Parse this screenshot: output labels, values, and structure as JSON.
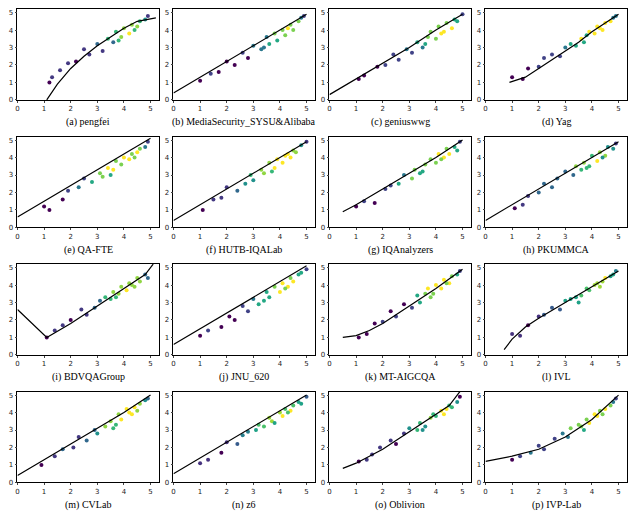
{
  "chart_data": [
    {
      "type": "scatter",
      "title": "(a) pengfei",
      "xlim": [
        0,
        5.3
      ],
      "ylim": [
        0,
        5.2
      ],
      "xticks": [
        0,
        1,
        2,
        3,
        4,
        5
      ],
      "yticks": [
        0,
        1,
        2,
        3,
        4,
        5
      ],
      "x": [
        1.2,
        1.3,
        1.6,
        1.9,
        2.2,
        2.5,
        2.7,
        3.0,
        3.2,
        3.4,
        3.6,
        3.7,
        3.9,
        4.0,
        4.2,
        4.3,
        4.5,
        4.6,
        4.8,
        4.9,
        3.8,
        4.4
      ],
      "y": [
        1.0,
        1.3,
        1.7,
        2.1,
        2.2,
        2.9,
        2.6,
        3.2,
        2.8,
        3.5,
        3.3,
        3.9,
        3.6,
        4.1,
        3.8,
        4.3,
        4.2,
        4.5,
        4.6,
        4.8,
        3.4,
        4.0
      ],
      "fit": {
        "x": [
          1.1,
          1.5,
          2.0,
          2.5,
          3.0,
          3.5,
          4.0,
          4.5,
          5.2
        ],
        "y": [
          0,
          0.9,
          1.8,
          2.5,
          3.1,
          3.6,
          4.1,
          4.5,
          4.7
        ]
      }
    },
    {
      "type": "scatter",
      "title": "(b) MediaSecurity_SYSU&Alibaba",
      "xlim": [
        0,
        5.3
      ],
      "ylim": [
        0,
        5.2
      ],
      "xticks": [
        0,
        1,
        2,
        3,
        4,
        5
      ],
      "yticks": [
        0,
        1,
        2,
        3,
        4,
        5
      ],
      "x": [
        1.0,
        1.4,
        1.7,
        2.0,
        2.3,
        2.6,
        2.8,
        3.0,
        3.3,
        3.5,
        3.6,
        3.8,
        3.9,
        4.1,
        4.2,
        4.4,
        4.5,
        4.7,
        4.8,
        4.9,
        3.4,
        4.3
      ],
      "y": [
        1.1,
        1.5,
        1.6,
        2.2,
        2.0,
        2.7,
        2.4,
        3.1,
        2.9,
        3.6,
        3.2,
        3.8,
        3.4,
        4.0,
        3.7,
        4.3,
        4.0,
        4.5,
        4.7,
        4.8,
        3.0,
        4.1
      ],
      "fit": {
        "x": [
          0,
          1,
          2,
          3,
          4,
          5
        ],
        "y": [
          0.4,
          1.3,
          2.2,
          3.1,
          4.0,
          4.9
        ]
      }
    },
    {
      "type": "scatter",
      "title": "(c) geniuswwg",
      "xlim": [
        0,
        5.3
      ],
      "ylim": [
        0,
        5.2
      ],
      "xticks": [
        0,
        1,
        2,
        3,
        4,
        5
      ],
      "yticks": [
        0,
        1,
        2,
        3,
        4,
        5
      ],
      "x": [
        1.1,
        1.3,
        1.8,
        2.1,
        2.4,
        2.6,
        2.9,
        3.1,
        3.3,
        3.5,
        3.7,
        3.8,
        4.0,
        4.1,
        4.3,
        4.4,
        4.6,
        4.7,
        4.8,
        5.0,
        3.6,
        4.2
      ],
      "y": [
        1.2,
        1.4,
        1.9,
        2.0,
        2.6,
        2.3,
        2.9,
        2.7,
        3.3,
        3.0,
        3.6,
        3.9,
        3.5,
        4.2,
        3.9,
        4.4,
        4.1,
        4.6,
        4.5,
        4.9,
        3.2,
        3.8
      ],
      "fit": {
        "x": [
          0,
          1,
          2,
          3,
          4,
          5
        ],
        "y": [
          0.3,
          1.2,
          2.1,
          3.0,
          4.0,
          4.9
        ]
      }
    },
    {
      "type": "scatter",
      "title": "(d) Yag",
      "xlim": [
        0,
        5.3
      ],
      "ylim": [
        0,
        5.2
      ],
      "xticks": [
        0,
        1,
        2,
        3,
        4,
        5
      ],
      "yticks": [
        0,
        1,
        2,
        3,
        4,
        5
      ],
      "x": [
        1.0,
        1.4,
        1.6,
        2.0,
        2.2,
        2.5,
        2.8,
        3.0,
        3.2,
        3.4,
        3.6,
        3.8,
        3.9,
        4.1,
        4.2,
        4.4,
        4.5,
        4.7,
        4.8,
        4.9,
        3.7,
        4.3
      ],
      "y": [
        1.3,
        1.2,
        1.8,
        1.9,
        2.4,
        2.6,
        2.5,
        3.0,
        3.2,
        3.1,
        3.5,
        3.7,
        3.9,
        3.8,
        4.2,
        4.0,
        4.4,
        4.5,
        4.7,
        4.8,
        3.3,
        4.1
      ],
      "fit": {
        "x": [
          0.9,
          1.5,
          2.0,
          2.5,
          3.0,
          3.5,
          4.0,
          4.5,
          5.0
        ],
        "y": [
          1.0,
          1.3,
          1.8,
          2.3,
          2.8,
          3.3,
          3.9,
          4.4,
          4.9
        ]
      }
    },
    {
      "type": "scatter",
      "title": "(e) QA-FTE",
      "xlim": [
        0,
        5.3
      ],
      "ylim": [
        0,
        5.2
      ],
      "xticks": [
        0,
        1,
        2,
        3,
        4,
        5
      ],
      "yticks": [
        0,
        1,
        2,
        3,
        4,
        5
      ],
      "x": [
        1.0,
        1.2,
        1.7,
        1.9,
        2.3,
        2.5,
        2.8,
        3.1,
        3.2,
        3.4,
        3.6,
        3.7,
        3.9,
        4.0,
        4.2,
        4.3,
        4.5,
        4.6,
        4.8,
        4.9,
        3.5,
        4.4
      ],
      "y": [
        1.2,
        1.0,
        1.6,
        2.1,
        2.3,
        2.8,
        2.6,
        3.1,
        2.9,
        3.4,
        3.3,
        3.8,
        3.6,
        4.0,
        3.9,
        4.2,
        4.3,
        4.5,
        4.6,
        4.9,
        3.0,
        4.0
      ],
      "fit": {
        "x": [
          0,
          1,
          2,
          3,
          4,
          5
        ],
        "y": [
          0.6,
          1.5,
          2.4,
          3.3,
          4.2,
          5.1
        ]
      }
    },
    {
      "type": "scatter",
      "title": "(f) HUTB-IQALab",
      "xlim": [
        0,
        5.3
      ],
      "ylim": [
        0,
        5.2
      ],
      "xticks": [
        0,
        1,
        2,
        3,
        4,
        5
      ],
      "yticks": [
        0,
        1,
        2,
        3,
        4,
        5
      ],
      "x": [
        1.1,
        1.5,
        1.8,
        2.0,
        2.4,
        2.7,
        2.9,
        3.0,
        3.3,
        3.4,
        3.6,
        3.8,
        3.9,
        4.1,
        4.2,
        4.4,
        4.5,
        4.6,
        4.8,
        5.0,
        3.7,
        4.3
      ],
      "y": [
        1.0,
        1.6,
        1.7,
        2.3,
        2.1,
        2.5,
        3.0,
        2.7,
        3.3,
        3.1,
        3.7,
        3.4,
        3.9,
        3.7,
        4.1,
        4.0,
        4.4,
        4.3,
        4.7,
        4.9,
        3.2,
        4.2
      ],
      "fit": {
        "x": [
          0,
          1,
          2,
          3,
          4,
          5
        ],
        "y": [
          0.4,
          1.3,
          2.2,
          3.1,
          4.0,
          4.9
        ]
      }
    },
    {
      "type": "scatter",
      "title": "(g) IQAnalyzers",
      "xlim": [
        0,
        5.3
      ],
      "ylim": [
        0,
        5.2
      ],
      "xticks": [
        0,
        1,
        2,
        3,
        4,
        5
      ],
      "yticks": [
        0,
        1,
        2,
        3,
        4,
        5
      ],
      "x": [
        1.0,
        1.3,
        1.7,
        2.1,
        2.3,
        2.6,
        2.8,
        3.1,
        3.2,
        3.5,
        3.6,
        3.8,
        4.0,
        4.1,
        4.3,
        4.4,
        4.5,
        4.7,
        4.8,
        4.9,
        3.4,
        4.2
      ],
      "y": [
        1.2,
        1.5,
        1.4,
        2.2,
        2.4,
        2.5,
        3.0,
        2.8,
        3.3,
        3.2,
        3.6,
        3.9,
        3.7,
        4.2,
        4.0,
        4.5,
        4.2,
        4.6,
        4.4,
        4.9,
        3.1,
        3.9
      ],
      "fit": {
        "x": [
          0.5,
          1.0,
          2.0,
          3.0,
          4.0,
          5.0
        ],
        "y": [
          0.9,
          1.3,
          2.2,
          3.1,
          4.0,
          5.0
        ]
      }
    },
    {
      "type": "scatter",
      "title": "(h) PKUMMCA",
      "xlim": [
        0,
        5.3
      ],
      "ylim": [
        0,
        5.2
      ],
      "xticks": [
        0,
        1,
        2,
        3,
        4,
        5
      ],
      "yticks": [
        0,
        1,
        2,
        3,
        4,
        5
      ],
      "x": [
        1.1,
        1.4,
        1.6,
        2.0,
        2.2,
        2.5,
        2.7,
        3.0,
        3.3,
        3.4,
        3.6,
        3.7,
        3.9,
        4.0,
        4.2,
        4.3,
        4.5,
        4.6,
        4.8,
        4.9,
        3.8,
        4.4
      ],
      "y": [
        1.1,
        1.3,
        1.8,
        2.0,
        2.5,
        2.3,
        2.8,
        3.2,
        3.0,
        3.5,
        3.3,
        3.7,
        3.5,
        4.1,
        3.8,
        4.3,
        4.1,
        4.6,
        4.5,
        4.8,
        3.4,
        4.0
      ],
      "fit": {
        "x": [
          0,
          1,
          2,
          3,
          4,
          5
        ],
        "y": [
          0.4,
          1.3,
          2.2,
          3.1,
          4.0,
          4.9
        ]
      }
    },
    {
      "type": "scatter",
      "title": "(i) BDVQAGroup",
      "xlim": [
        0,
        5.3
      ],
      "ylim": [
        0,
        5.2
      ],
      "xticks": [
        0,
        1,
        2,
        3,
        4,
        5
      ],
      "yticks": [
        0,
        1,
        2,
        3,
        4,
        5
      ],
      "x": [
        1.1,
        1.4,
        1.7,
        2.0,
        2.4,
        2.6,
        2.9,
        3.1,
        3.3,
        3.5,
        3.6,
        3.8,
        3.9,
        4.1,
        4.2,
        4.4,
        4.5,
        4.6,
        4.8,
        4.9,
        3.7,
        4.3
      ],
      "y": [
        1.0,
        1.4,
        1.7,
        2.0,
        2.6,
        2.3,
        2.7,
        3.1,
        3.3,
        3.2,
        3.6,
        3.5,
        3.9,
        3.7,
        4.1,
        3.9,
        4.4,
        4.2,
        4.6,
        4.4,
        3.3,
        4.0
      ],
      "fit": {
        "x": [
          0,
          1.1,
          2.0,
          3.0,
          4.0,
          4.8,
          5.1
        ],
        "y": [
          2.6,
          1.0,
          1.8,
          2.8,
          3.8,
          4.6,
          5.2
        ]
      }
    },
    {
      "type": "scatter",
      "title": "(j) JNU_620",
      "xlim": [
        0,
        5.3
      ],
      "ylim": [
        0,
        5.2
      ],
      "xticks": [
        0,
        1,
        2,
        3,
        4,
        5
      ],
      "yticks": [
        0,
        1,
        2,
        3,
        4,
        5
      ],
      "x": [
        1.0,
        1.3,
        1.8,
        2.1,
        2.3,
        2.6,
        2.8,
        3.0,
        3.2,
        3.5,
        3.6,
        3.8,
        4.0,
        4.1,
        4.3,
        4.4,
        4.5,
        4.7,
        4.8,
        5.0,
        3.4,
        4.2
      ],
      "y": [
        1.1,
        1.4,
        1.6,
        2.2,
        2.0,
        2.8,
        2.5,
        3.2,
        2.9,
        3.6,
        3.3,
        3.9,
        3.6,
        4.1,
        3.9,
        4.4,
        4.2,
        4.6,
        4.7,
        4.9,
        3.1,
        3.8
      ],
      "fit": {
        "x": [
          0,
          1,
          2,
          3,
          4,
          5
        ],
        "y": [
          0.6,
          1.5,
          2.4,
          3.3,
          4.2,
          5.1
        ]
      }
    },
    {
      "type": "scatter",
      "title": "(k) MT-AIGCQA",
      "xlim": [
        0,
        5.3
      ],
      "ylim": [
        0,
        5.2
      ],
      "xticks": [
        0,
        1,
        2,
        3,
        4,
        5
      ],
      "yticks": [
        0,
        1,
        2,
        3,
        4,
        5
      ],
      "x": [
        1.1,
        1.4,
        1.7,
        2.0,
        2.3,
        2.5,
        2.8,
        3.1,
        3.3,
        3.4,
        3.6,
        3.7,
        3.9,
        4.0,
        4.2,
        4.3,
        4.5,
        4.6,
        4.8,
        4.9,
        3.8,
        4.4
      ],
      "y": [
        1.0,
        1.2,
        1.8,
        1.9,
        2.5,
        2.2,
        2.9,
        2.7,
        3.4,
        3.0,
        3.5,
        3.8,
        3.5,
        4.0,
        3.8,
        4.3,
        4.1,
        4.5,
        4.6,
        4.8,
        3.3,
        4.1
      ],
      "fit": {
        "x": [
          0.5,
          1.0,
          1.5,
          2.0,
          3.0,
          4.0,
          5.0
        ],
        "y": [
          1.0,
          1.1,
          1.4,
          1.8,
          2.8,
          3.8,
          4.9
        ]
      }
    },
    {
      "type": "scatter",
      "title": "(l) IVL",
      "xlim": [
        0,
        5.3
      ],
      "ylim": [
        0,
        5.2
      ],
      "xticks": [
        0,
        1,
        2,
        3,
        4,
        5
      ],
      "yticks": [
        0,
        1,
        2,
        3,
        4,
        5
      ],
      "x": [
        1.0,
        1.3,
        1.6,
        2.0,
        2.2,
        2.5,
        2.8,
        3.0,
        3.2,
        3.4,
        3.6,
        3.8,
        3.9,
        4.1,
        4.2,
        4.4,
        4.5,
        4.7,
        4.8,
        4.9,
        3.5,
        4.3
      ],
      "y": [
        1.2,
        1.1,
        1.7,
        2.2,
        2.3,
        2.7,
        2.6,
        3.1,
        3.2,
        3.3,
        3.4,
        3.8,
        3.7,
        4.0,
        4.1,
        4.2,
        4.4,
        4.5,
        4.6,
        4.8,
        3.0,
        3.9
      ],
      "fit": {
        "x": [
          0.7,
          1.0,
          1.5,
          2.0,
          3.0,
          4.0,
          5.0
        ],
        "y": [
          0.3,
          0.9,
          1.6,
          2.1,
          3.0,
          3.9,
          4.8
        ]
      }
    },
    {
      "type": "scatter",
      "title": "(m) CVLab",
      "xlim": [
        0,
        5.3
      ],
      "ylim": [
        0,
        5.2
      ],
      "xticks": [
        0,
        1,
        2,
        3,
        4,
        5
      ],
      "yticks": [
        0,
        1,
        2,
        3,
        4,
        5
      ],
      "x": [
        0.9,
        1.4,
        1.7,
        2.1,
        2.3,
        2.6,
        2.9,
        3.0,
        3.3,
        3.5,
        3.6,
        3.8,
        3.9,
        4.1,
        4.3,
        4.4,
        4.5,
        4.6,
        4.8,
        4.9,
        3.7,
        4.2
      ],
      "y": [
        1.0,
        1.5,
        1.9,
        2.0,
        2.6,
        2.4,
        3.0,
        2.8,
        3.2,
        3.5,
        3.1,
        3.9,
        3.6,
        4.2,
        3.9,
        4.3,
        4.1,
        4.5,
        4.7,
        4.8,
        3.3,
        4.0
      ],
      "fit": {
        "x": [
          0,
          1,
          2,
          3,
          4,
          5
        ],
        "y": [
          0.4,
          1.3,
          2.2,
          3.1,
          4.0,
          5.0
        ]
      }
    },
    {
      "type": "scatter",
      "title": "(n) z6",
      "xlim": [
        0,
        5.3
      ],
      "ylim": [
        0,
        5.2
      ],
      "xticks": [
        0,
        1,
        2,
        3,
        4,
        5
      ],
      "yticks": [
        0,
        1,
        2,
        3,
        4,
        5
      ],
      "x": [
        1.0,
        1.3,
        1.8,
        2.0,
        2.4,
        2.6,
        2.8,
        3.1,
        3.2,
        3.4,
        3.6,
        3.7,
        4.0,
        4.1,
        4.2,
        4.4,
        4.5,
        4.7,
        4.8,
        5.0,
        3.8,
        4.3
      ],
      "y": [
        1.1,
        1.3,
        1.7,
        2.3,
        2.2,
        2.7,
        2.9,
        3.0,
        3.3,
        3.2,
        3.7,
        3.5,
        4.0,
        3.8,
        4.2,
        4.1,
        4.4,
        4.6,
        4.5,
        4.9,
        3.4,
        4.0
      ],
      "fit": {
        "x": [
          0,
          1,
          2,
          3,
          4,
          5
        ],
        "y": [
          0.5,
          1.4,
          2.3,
          3.2,
          4.1,
          5.0
        ]
      }
    },
    {
      "type": "scatter",
      "title": "(o) Oblivion",
      "xlim": [
        0,
        5.3
      ],
      "ylim": [
        0,
        5.2
      ],
      "xticks": [
        0,
        1,
        2,
        3,
        4,
        5
      ],
      "yticks": [
        0,
        1,
        2,
        3,
        4,
        5
      ],
      "x": [
        1.1,
        1.4,
        1.6,
        1.9,
        2.3,
        2.5,
        2.8,
        3.0,
        3.3,
        3.4,
        3.6,
        3.8,
        3.9,
        4.0,
        4.2,
        4.4,
        4.5,
        4.6,
        4.8,
        4.9,
        3.5,
        4.3
      ],
      "y": [
        1.2,
        1.3,
        1.6,
        2.0,
        2.4,
        2.2,
        2.8,
        3.1,
        3.0,
        3.4,
        3.2,
        3.7,
        3.9,
        3.8,
        4.1,
        4.2,
        4.4,
        4.3,
        4.6,
        4.9,
        3.0,
        3.9
      ],
      "fit": {
        "x": [
          0.5,
          1.0,
          2.0,
          3.0,
          4.0,
          4.5,
          4.9
        ],
        "y": [
          0.8,
          1.1,
          1.9,
          2.9,
          3.9,
          4.4,
          5.2
        ]
      }
    },
    {
      "type": "scatter",
      "title": "(p) IVP-Lab",
      "xlim": [
        0,
        5.3
      ],
      "ylim": [
        0,
        5.2
      ],
      "xticks": [
        0,
        1,
        2,
        3,
        4,
        5
      ],
      "yticks": [
        0,
        1,
        2,
        3,
        4,
        5
      ],
      "x": [
        1.0,
        1.3,
        1.7,
        2.0,
        2.2,
        2.6,
        2.9,
        3.1,
        3.2,
        3.5,
        3.6,
        3.8,
        3.9,
        4.1,
        4.2,
        4.3,
        4.5,
        4.7,
        4.8,
        4.9,
        3.7,
        4.4
      ],
      "y": [
        1.3,
        1.5,
        1.7,
        2.1,
        1.9,
        2.5,
        2.8,
        2.6,
        3.1,
        3.3,
        3.2,
        3.6,
        3.4,
        3.9,
        3.8,
        4.1,
        4.2,
        4.4,
        4.6,
        4.8,
        3.0,
        3.9
      ],
      "fit": {
        "x": [
          0,
          1,
          2,
          3,
          4,
          5
        ],
        "y": [
          1.2,
          1.5,
          1.9,
          2.6,
          3.6,
          5.0
        ]
      }
    }
  ]
}
